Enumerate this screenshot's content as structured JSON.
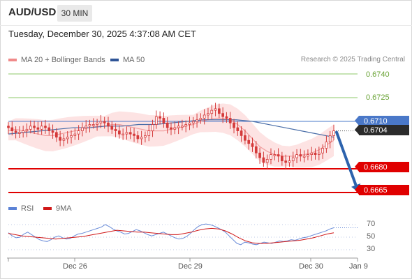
{
  "header": {
    "pair": "AUD/USD",
    "timeframe": "30 MIN",
    "datetime": "Tuesday, December 30, 2025 4:37:08 AM CET"
  },
  "legend": {
    "ma20_label": "MA 20 + Bollinger Bands",
    "ma50_label": "MA 50",
    "credit": "Research © 2025 Trading Central"
  },
  "levels": {
    "resistance_2": "0.6740",
    "resistance_1": "0.6725",
    "pivot": "0.6710",
    "current": "0.6704",
    "support_1": "0.6680",
    "support_2": "0.6665"
  },
  "rsi_legend": {
    "rsi_label": "RSI",
    "ma_label": "9MA"
  },
  "rsi_axis": [
    "70",
    "50",
    "30"
  ],
  "x_axis": [
    "Dec 26",
    "Dec 29",
    "Dec 30",
    "Jan 9"
  ],
  "colors": {
    "resistance": "#8dc86a",
    "pivot": "#4a78c8",
    "support": "#e00000",
    "candle": "#d43a3a",
    "bollinger_fill": "#fde0e0",
    "ma20": "#f2a0a0",
    "ma50": "#4a6ea8",
    "rsi_line": "#6a8cd8",
    "rsi_ma": "#d01818",
    "arrow": "#2d63ad",
    "current_tag": "#2b2b2b"
  },
  "chart_data": {
    "type": "candlestick",
    "instrument": "AUD/USD",
    "interval": "30 MIN",
    "y_range": [
      0.6662,
      0.6748
    ],
    "x_ticks": [
      "Dec 26",
      "Dec 29",
      "Dec 30",
      "Jan 9"
    ],
    "close_series": [
      0.6706,
      0.6704,
      0.6703,
      0.6703,
      0.6704,
      0.6705,
      0.6707,
      0.6706,
      0.6705,
      0.6707,
      0.6706,
      0.6704,
      0.6703,
      0.67,
      0.6698,
      0.6699,
      0.67,
      0.6701,
      0.6702,
      0.6704,
      0.6706,
      0.6707,
      0.6708,
      0.6708,
      0.6709,
      0.671,
      0.6709,
      0.6707,
      0.6705,
      0.6704,
      0.6702,
      0.6702,
      0.6703,
      0.6702,
      0.6701,
      0.6699,
      0.67,
      0.6701,
      0.6704,
      0.6708,
      0.6713,
      0.6712,
      0.6709,
      0.6706,
      0.6705,
      0.6706,
      0.6707,
      0.6707,
      0.6708,
      0.6709,
      0.671,
      0.6711,
      0.6712,
      0.6714,
      0.6715,
      0.6717,
      0.6718,
      0.6715,
      0.6713,
      0.6712,
      0.6709,
      0.6706,
      0.6704,
      0.6701,
      0.6698,
      0.6696,
      0.6694,
      0.669,
      0.6687,
      0.6684,
      0.6686,
      0.6689,
      0.6689,
      0.6688,
      0.6685,
      0.6684,
      0.6685,
      0.6687,
      0.6689,
      0.6688,
      0.6688,
      0.6689,
      0.669,
      0.6689,
      0.669,
      0.6693,
      0.6697,
      0.6701,
      0.6704
    ],
    "ma20_series": [
      0.6704,
      0.6705,
      0.6704,
      0.6703,
      0.6702,
      0.6701,
      0.6701,
      0.6702,
      0.6703,
      0.6704,
      0.6705,
      0.6706,
      0.6707,
      0.6707,
      0.6708,
      0.6708,
      0.6707,
      0.6706,
      0.6705,
      0.6704,
      0.6704,
      0.6704,
      0.6705,
      0.6706,
      0.6707,
      0.6708,
      0.671,
      0.6711,
      0.6712,
      0.6712,
      0.6711,
      0.6708,
      0.6704,
      0.6699,
      0.6694,
      0.6691,
      0.6689,
      0.6688,
      0.6688,
      0.6688,
      0.6689,
      0.669,
      0.6692,
      0.6695,
      0.6698
    ],
    "ma50_series": [
      0.6702,
      0.6703,
      0.6704,
      0.6705,
      0.6706,
      0.6706,
      0.6707,
      0.6707,
      0.6708,
      0.6708,
      0.6709,
      0.671,
      0.6711,
      0.6711,
      0.6711,
      0.671,
      0.6708,
      0.6706,
      0.6704,
      0.6702,
      0.67
    ],
    "support_resistance": [
      0.674,
      0.6725,
      0.671,
      0.668,
      0.6665
    ],
    "current_price": 0.6704,
    "forecast_target": 0.6665,
    "rsi": {
      "range": [
        20,
        80
      ],
      "levels": [
        70,
        50,
        30
      ],
      "rsi_series": [
        57,
        52,
        49,
        50,
        55,
        58,
        54,
        50,
        46,
        44,
        43,
        46,
        50,
        52,
        49,
        47,
        48,
        52,
        55,
        56,
        58,
        60,
        62,
        64,
        66,
        70,
        67,
        63,
        60,
        58,
        55,
        56,
        59,
        62,
        60,
        57,
        54,
        52,
        54,
        56,
        58,
        55,
        52,
        49,
        47,
        48,
        51,
        56,
        62,
        67,
        70,
        71,
        70,
        68,
        65,
        62,
        58,
        52,
        46,
        40,
        38,
        42,
        41,
        39,
        38,
        40,
        42,
        41,
        40,
        42,
        44,
        43,
        44,
        46,
        45,
        47,
        49,
        50,
        52,
        54,
        56,
        58,
        60,
        63,
        65
      ],
      "ma_series": [
        56,
        54,
        52,
        51,
        50,
        49,
        48,
        47,
        48,
        49,
        50,
        51,
        53,
        55,
        57,
        59,
        61,
        60,
        59,
        58,
        58,
        57,
        56,
        55,
        54,
        54,
        56,
        58,
        61,
        63,
        64,
        63,
        60,
        55,
        49,
        44,
        41,
        40,
        40,
        41,
        42,
        43,
        44,
        45,
        47,
        49,
        52,
        55,
        57
      ]
    }
  }
}
